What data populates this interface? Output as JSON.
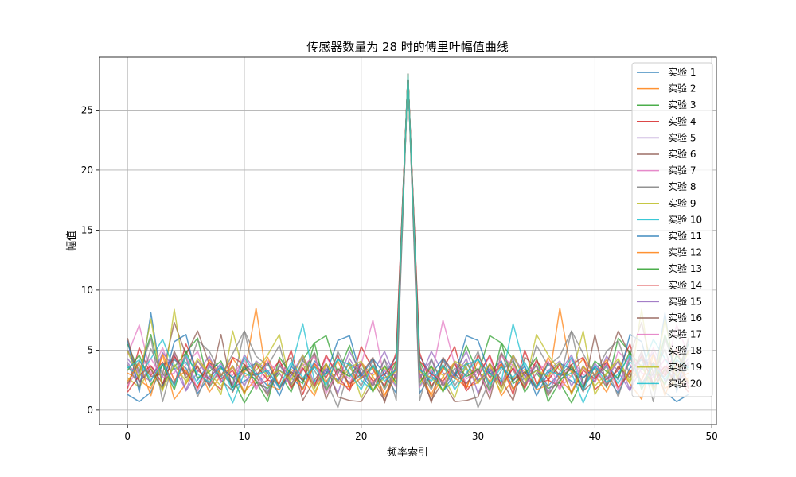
{
  "chart_data": {
    "type": "line",
    "title": "传感器数量为 28 时的傅里叶幅值曲线",
    "xlabel": "频率索引",
    "ylabel": "幅值",
    "xlim": [
      -2.4,
      50.4
    ],
    "ylim": [
      -1.2,
      29.4
    ],
    "xticks": [
      0,
      10,
      20,
      30,
      40,
      50
    ],
    "yticks": [
      0,
      5,
      10,
      15,
      20,
      25
    ],
    "grid": true,
    "legend_position": "top-right",
    "x": [
      0,
      1,
      2,
      3,
      4,
      5,
      6,
      7,
      8,
      9,
      10,
      11,
      12,
      13,
      14,
      15,
      16,
      17,
      18,
      19,
      20,
      21,
      22,
      23,
      24,
      25,
      26,
      27,
      28,
      29,
      30,
      31,
      32,
      33,
      34,
      35,
      36,
      37,
      38,
      39,
      40,
      41,
      42,
      43,
      44,
      45,
      46,
      47,
      48
    ],
    "series": [
      {
        "name": "实验 1",
        "color": "#1f77b4",
        "values": [
          1.3,
          0.7,
          1.5,
          3.8,
          4.2,
          3.5,
          1.4,
          2.8,
          3.6,
          1.9,
          2.4,
          3.1,
          2.0,
          3.3,
          2.7,
          1.8,
          4.1,
          3.2,
          2.5,
          3.9,
          3.0,
          1.6,
          2.9,
          4.5,
          28.0,
          4.5,
          2.9,
          1.6,
          3.0,
          3.9,
          2.5,
          3.2,
          4.1,
          1.8,
          2.7,
          3.3,
          2.0,
          3.1,
          2.4,
          1.9,
          3.6,
          2.8,
          1.4,
          3.5,
          4.2,
          3.8,
          1.5,
          0.7,
          1.3
        ]
      },
      {
        "name": "实验 2",
        "color": "#ff7f0e",
        "values": [
          3.1,
          2.5,
          1.8,
          4.6,
          0.9,
          2.2,
          3.7,
          1.5,
          2.9,
          4.3,
          3.0,
          8.5,
          2.1,
          1.7,
          3.4,
          2.6,
          1.2,
          3.8,
          2.3,
          1.9,
          4.0,
          2.8,
          1.1,
          3.6,
          28.0,
          3.6,
          1.1,
          2.8,
          4.0,
          1.9,
          2.3,
          3.8,
          1.2,
          2.6,
          3.4,
          1.7,
          2.1,
          8.5,
          3.0,
          4.3,
          2.9,
          1.5,
          3.7,
          2.2,
          0.9,
          4.6,
          1.8,
          2.5,
          3.1
        ]
      },
      {
        "name": "实验 3",
        "color": "#2ca02c",
        "values": [
          5.5,
          3.2,
          6.3,
          2.1,
          3.6,
          4.8,
          6.0,
          1.9,
          3.5,
          2.7,
          0.6,
          2.3,
          1.8,
          3.1,
          1.5,
          4.2,
          5.6,
          6.2,
          3.0,
          5.4,
          2.6,
          3.7,
          1.9,
          4.1,
          28.0,
          4.1,
          1.9,
          3.7,
          2.6,
          5.4,
          3.0,
          6.2,
          5.6,
          4.2,
          1.5,
          3.1,
          1.8,
          2.3,
          0.6,
          2.7,
          3.5,
          1.9,
          6.0,
          4.8,
          3.6,
          2.1,
          6.3,
          3.2,
          5.5
        ]
      },
      {
        "name": "实验 4",
        "color": "#d62728",
        "values": [
          1.8,
          5.2,
          2.9,
          4.0,
          2.1,
          5.5,
          3.3,
          2.6,
          1.7,
          4.4,
          3.8,
          2.0,
          2.5,
          2.2,
          5.0,
          1.3,
          3.9,
          2.7,
          4.6,
          1.8,
          5.3,
          3.4,
          2.0,
          4.8,
          28.0,
          4.8,
          2.0,
          3.4,
          5.3,
          1.8,
          4.6,
          2.7,
          3.9,
          1.3,
          5.0,
          2.2,
          2.5,
          2.0,
          3.8,
          4.4,
          1.7,
          2.6,
          3.3,
          5.5,
          2.1,
          4.0,
          2.9,
          5.2,
          1.8
        ]
      },
      {
        "name": "实验 5",
        "color": "#9467bd",
        "values": [
          4.0,
          2.4,
          3.6,
          2.8,
          4.7,
          1.6,
          3.2,
          4.5,
          2.3,
          3.7,
          2.0,
          4.1,
          3.3,
          1.8,
          2.9,
          4.6,
          2.2,
          3.5,
          1.4,
          4.3,
          2.7,
          3.1,
          4.9,
          2.5,
          28.0,
          2.5,
          4.9,
          3.1,
          2.7,
          4.3,
          1.4,
          3.5,
          2.2,
          4.6,
          2.9,
          1.8,
          3.3,
          4.1,
          2.0,
          3.7,
          2.3,
          4.5,
          3.2,
          1.6,
          4.7,
          2.8,
          3.6,
          2.4,
          4.0
        ]
      },
      {
        "name": "实验 6",
        "color": "#8c564b",
        "values": [
          2.2,
          4.1,
          2.8,
          3.0,
          7.3,
          4.6,
          6.6,
          3.8,
          2.5,
          1.6,
          3.4,
          2.8,
          1.2,
          3.6,
          4.4,
          0.8,
          2.5,
          3.9,
          1.1,
          0.8,
          0.7,
          2.4,
          0.8,
          3.1,
          28.0,
          3.1,
          0.8,
          2.4,
          0.7,
          0.8,
          1.1,
          3.9,
          2.5,
          0.8,
          4.4,
          3.6,
          1.2,
          2.8,
          3.4,
          1.6,
          2.5,
          3.8,
          6.6,
          4.6,
          7.3,
          3.0,
          2.8,
          4.1,
          2.2
        ]
      },
      {
        "name": "实验 7",
        "color": "#e377c2",
        "values": [
          4.6,
          7.1,
          3.0,
          5.2,
          2.4,
          3.8,
          4.9,
          2.0,
          3.6,
          2.9,
          4.3,
          1.7,
          3.2,
          4.0,
          2.6,
          3.5,
          1.9,
          4.4,
          3.1,
          2.3,
          3.8,
          7.5,
          2.6,
          3.3,
          28.0,
          3.3,
          2.6,
          7.5,
          3.8,
          2.3,
          3.1,
          4.4,
          1.9,
          3.5,
          2.6,
          4.0,
          3.2,
          1.7,
          4.3,
          2.9,
          3.6,
          2.0,
          4.9,
          3.8,
          2.4,
          5.2,
          3.0,
          7.1,
          4.6
        ]
      },
      {
        "name": "实验 8",
        "color": "#7f7f7f",
        "values": [
          5.0,
          3.1,
          6.0,
          0.7,
          4.4,
          2.9,
          5.8,
          4.9,
          3.0,
          2.1,
          6.6,
          4.5,
          3.7,
          5.4,
          1.9,
          3.3,
          4.8,
          2.5,
          0.2,
          3.6,
          2.0,
          4.2,
          1.7,
          3.5,
          28.0,
          3.5,
          1.7,
          4.2,
          2.0,
          3.6,
          0.2,
          2.5,
          4.8,
          3.3,
          1.9,
          5.4,
          3.7,
          4.5,
          6.6,
          2.1,
          3.0,
          4.9,
          5.8,
          2.9,
          4.4,
          0.7,
          6.0,
          3.1,
          5.0
        ]
      },
      {
        "name": "实验 9",
        "color": "#bcbd22",
        "values": [
          2.7,
          1.9,
          3.5,
          1.6,
          8.4,
          2.2,
          4.1,
          3.0,
          1.3,
          6.6,
          2.8,
          3.3,
          4.6,
          6.3,
          2.0,
          3.9,
          1.5,
          3.2,
          2.4,
          4.0,
          1.0,
          2.9,
          3.6,
          2.1,
          28.0,
          2.1,
          3.6,
          2.9,
          1.0,
          4.0,
          2.4,
          3.2,
          1.5,
          3.9,
          2.0,
          6.3,
          4.6,
          3.3,
          2.8,
          6.6,
          1.3,
          3.0,
          4.1,
          2.2,
          8.4,
          1.6,
          3.5,
          1.9,
          2.7
        ]
      },
      {
        "name": "实验 10",
        "color": "#17becf",
        "values": [
          3.6,
          2.8,
          4.3,
          5.9,
          3.4,
          4.0,
          2.2,
          3.7,
          2.9,
          0.6,
          3.1,
          2.6,
          3.9,
          1.8,
          3.5,
          7.2,
          2.4,
          3.0,
          4.2,
          3.8,
          2.5,
          1.6,
          3.3,
          2.0,
          28.0,
          2.0,
          3.3,
          1.6,
          2.5,
          3.8,
          4.2,
          3.0,
          2.4,
          7.2,
          3.5,
          1.8,
          3.9,
          2.6,
          3.1,
          0.6,
          2.9,
          3.7,
          2.2,
          4.0,
          3.4,
          5.9,
          4.3,
          2.8,
          3.6
        ]
      },
      {
        "name": "实验 11",
        "color": "#1f77b4",
        "values": [
          5.8,
          1.5,
          8.1,
          2.0,
          5.7,
          6.3,
          2.5,
          3.9,
          3.6,
          2.7,
          3.4,
          3.9,
          3.1,
          1.2,
          3.7,
          2.4,
          3.6,
          3.0,
          5.8,
          6.2,
          2.8,
          4.3,
          3.0,
          1.4,
          28.0,
          1.4,
          3.0,
          4.3,
          2.8,
          6.2,
          5.8,
          3.0,
          3.6,
          2.4,
          3.7,
          1.2,
          3.1,
          3.9,
          3.4,
          2.7,
          3.6,
          3.9,
          2.5,
          6.3,
          5.7,
          2.0,
          8.1,
          1.5,
          5.8
        ]
      },
      {
        "name": "实验 12",
        "color": "#ff7f0e",
        "values": [
          2.4,
          3.9,
          1.2,
          4.7,
          2.5,
          3.3,
          1.8,
          4.2,
          2.9,
          3.6,
          1.5,
          2.6,
          4.4,
          2.0,
          3.2,
          1.7,
          3.8,
          2.3,
          4.1,
          1.9,
          2.7,
          3.5,
          1.3,
          2.8,
          28.0,
          2.8,
          1.3,
          3.5,
          2.7,
          1.9,
          4.1,
          2.3,
          3.8,
          1.7,
          3.2,
          2.0,
          4.4,
          2.6,
          1.5,
          3.6,
          2.9,
          4.2,
          1.8,
          3.3,
          2.5,
          4.7,
          1.2,
          3.9,
          2.4
        ]
      },
      {
        "name": "实验 13",
        "color": "#2ca02c",
        "values": [
          3.3,
          4.6,
          2.1,
          3.8,
          1.7,
          4.9,
          2.7,
          3.2,
          4.1,
          1.9,
          3.6,
          2.4,
          0.7,
          4.4,
          3.0,
          2.2,
          5.6,
          1.6,
          3.4,
          2.8,
          4.0,
          1.5,
          3.7,
          2.3,
          28.0,
          2.3,
          3.7,
          1.5,
          4.0,
          2.8,
          3.4,
          1.6,
          5.6,
          2.2,
          3.0,
          4.4,
          0.7,
          2.4,
          3.6,
          1.9,
          4.1,
          3.2,
          2.7,
          4.9,
          1.7,
          3.8,
          2.1,
          4.6,
          3.3
        ]
      },
      {
        "name": "实验 14",
        "color": "#d62728",
        "values": [
          1.5,
          2.9,
          3.7,
          2.2,
          4.5,
          3.1,
          1.9,
          4.0,
          2.6,
          3.3,
          1.4,
          3.8,
          2.5,
          4.2,
          1.8,
          3.5,
          2.0,
          4.6,
          2.8,
          1.6,
          3.9,
          2.4,
          3.0,
          4.1,
          28.0,
          4.1,
          3.0,
          2.4,
          3.9,
          1.6,
          2.8,
          4.6,
          2.0,
          3.5,
          1.8,
          4.2,
          2.5,
          3.8,
          1.4,
          3.3,
          2.6,
          4.0,
          1.9,
          3.1,
          4.5,
          2.2,
          3.7,
          2.9,
          1.5
        ]
      },
      {
        "name": "实验 15",
        "color": "#9467bd",
        "values": [
          4.3,
          3.0,
          2.4,
          4.8,
          3.5,
          1.7,
          4.1,
          2.6,
          3.9,
          2.1,
          4.6,
          3.2,
          1.5,
          3.7,
          2.8,
          4.4,
          1.9,
          3.4,
          2.3,
          4.9,
          3.1,
          2.0,
          4.2,
          2.7,
          28.0,
          2.7,
          4.2,
          2.0,
          3.1,
          4.9,
          2.3,
          3.4,
          1.9,
          4.4,
          2.8,
          3.7,
          1.5,
          3.2,
          4.6,
          2.1,
          3.9,
          2.6,
          4.1,
          1.7,
          3.5,
          4.8,
          2.4,
          3.0,
          4.3
        ]
      },
      {
        "name": "实验 16",
        "color": "#8c564b",
        "values": [
          6.0,
          2.3,
          3.4,
          1.8,
          4.9,
          2.7,
          3.6,
          2.0,
          6.3,
          1.5,
          3.8,
          2.9,
          4.0,
          1.9,
          3.2,
          2.5,
          4.7,
          0.9,
          3.5,
          2.2,
          3.0,
          4.4,
          0.6,
          3.9,
          28.0,
          3.9,
          0.6,
          4.4,
          3.0,
          2.2,
          3.5,
          0.9,
          4.7,
          2.5,
          3.2,
          1.9,
          4.0,
          2.9,
          3.8,
          1.5,
          6.3,
          2.0,
          3.6,
          2.7,
          4.9,
          1.8,
          3.4,
          2.3,
          6.0
        ]
      },
      {
        "name": "实验 17",
        "color": "#e377c2",
        "values": [
          2.0,
          3.6,
          4.3,
          2.7,
          3.1,
          4.6,
          1.6,
          3.9,
          2.4,
          3.5,
          2.9,
          1.8,
          4.1,
          3.0,
          2.2,
          3.7,
          4.5,
          1.4,
          3.3,
          2.6,
          4.0,
          2.1,
          3.4,
          1.9,
          28.0,
          1.9,
          3.4,
          2.1,
          4.0,
          2.6,
          3.3,
          1.4,
          4.5,
          3.7,
          2.2,
          3.0,
          4.1,
          1.8,
          2.9,
          3.5,
          2.4,
          3.9,
          1.6,
          4.6,
          3.1,
          2.7,
          4.3,
          3.6,
          2.0
        ]
      },
      {
        "name": "实验 18",
        "color": "#7f7f7f",
        "values": [
          3.8,
          1.9,
          5.1,
          3.0,
          2.3,
          4.4,
          1.1,
          3.6,
          2.8,
          4.7,
          6.6,
          2.5,
          1.4,
          3.8,
          2.1,
          4.1,
          3.3,
          1.7,
          4.9,
          2.9,
          3.5,
          2.0,
          4.3,
          0.8,
          28.0,
          0.8,
          4.3,
          2.0,
          3.5,
          2.9,
          4.9,
          1.7,
          3.3,
          4.1,
          2.1,
          3.8,
          1.4,
          2.5,
          6.6,
          4.7,
          2.8,
          3.6,
          1.1,
          4.4,
          2.3,
          3.0,
          5.1,
          1.9,
          3.8
        ]
      },
      {
        "name": "实验 19",
        "color": "#bcbd22",
        "values": [
          4.9,
          2.6,
          7.6,
          1.7,
          3.8,
          2.4,
          4.3,
          3.1,
          2.0,
          3.7,
          1.3,
          4.0,
          2.8,
          3.3,
          2.5,
          4.6,
          1.8,
          3.9,
          2.2,
          3.5,
          4.1,
          1.6,
          2.7,
          3.2,
          28.0,
          3.2,
          2.7,
          1.6,
          4.1,
          3.5,
          2.2,
          3.9,
          1.8,
          4.6,
          2.5,
          3.3,
          2.8,
          4.0,
          1.3,
          3.7,
          2.0,
          3.1,
          4.3,
          2.4,
          3.8,
          1.7,
          7.6,
          2.6,
          4.9
        ]
      },
      {
        "name": "实验 20",
        "color": "#17becf",
        "values": [
          3.5,
          4.2,
          2.5,
          3.9,
          2.0,
          4.6,
          3.0,
          2.3,
          3.7,
          1.6,
          4.4,
          2.9,
          3.3,
          1.9,
          4.0,
          2.7,
          3.6,
          2.1,
          4.3,
          3.1,
          1.7,
          3.8,
          2.4,
          3.4,
          28.0,
          3.4,
          2.4,
          3.8,
          1.7,
          3.1,
          4.3,
          2.1,
          3.6,
          2.7,
          4.0,
          1.9,
          3.3,
          2.9,
          4.4,
          1.6,
          3.7,
          2.3,
          3.0,
          4.6,
          2.0,
          3.9,
          2.5,
          4.2,
          3.5
        ]
      }
    ]
  }
}
